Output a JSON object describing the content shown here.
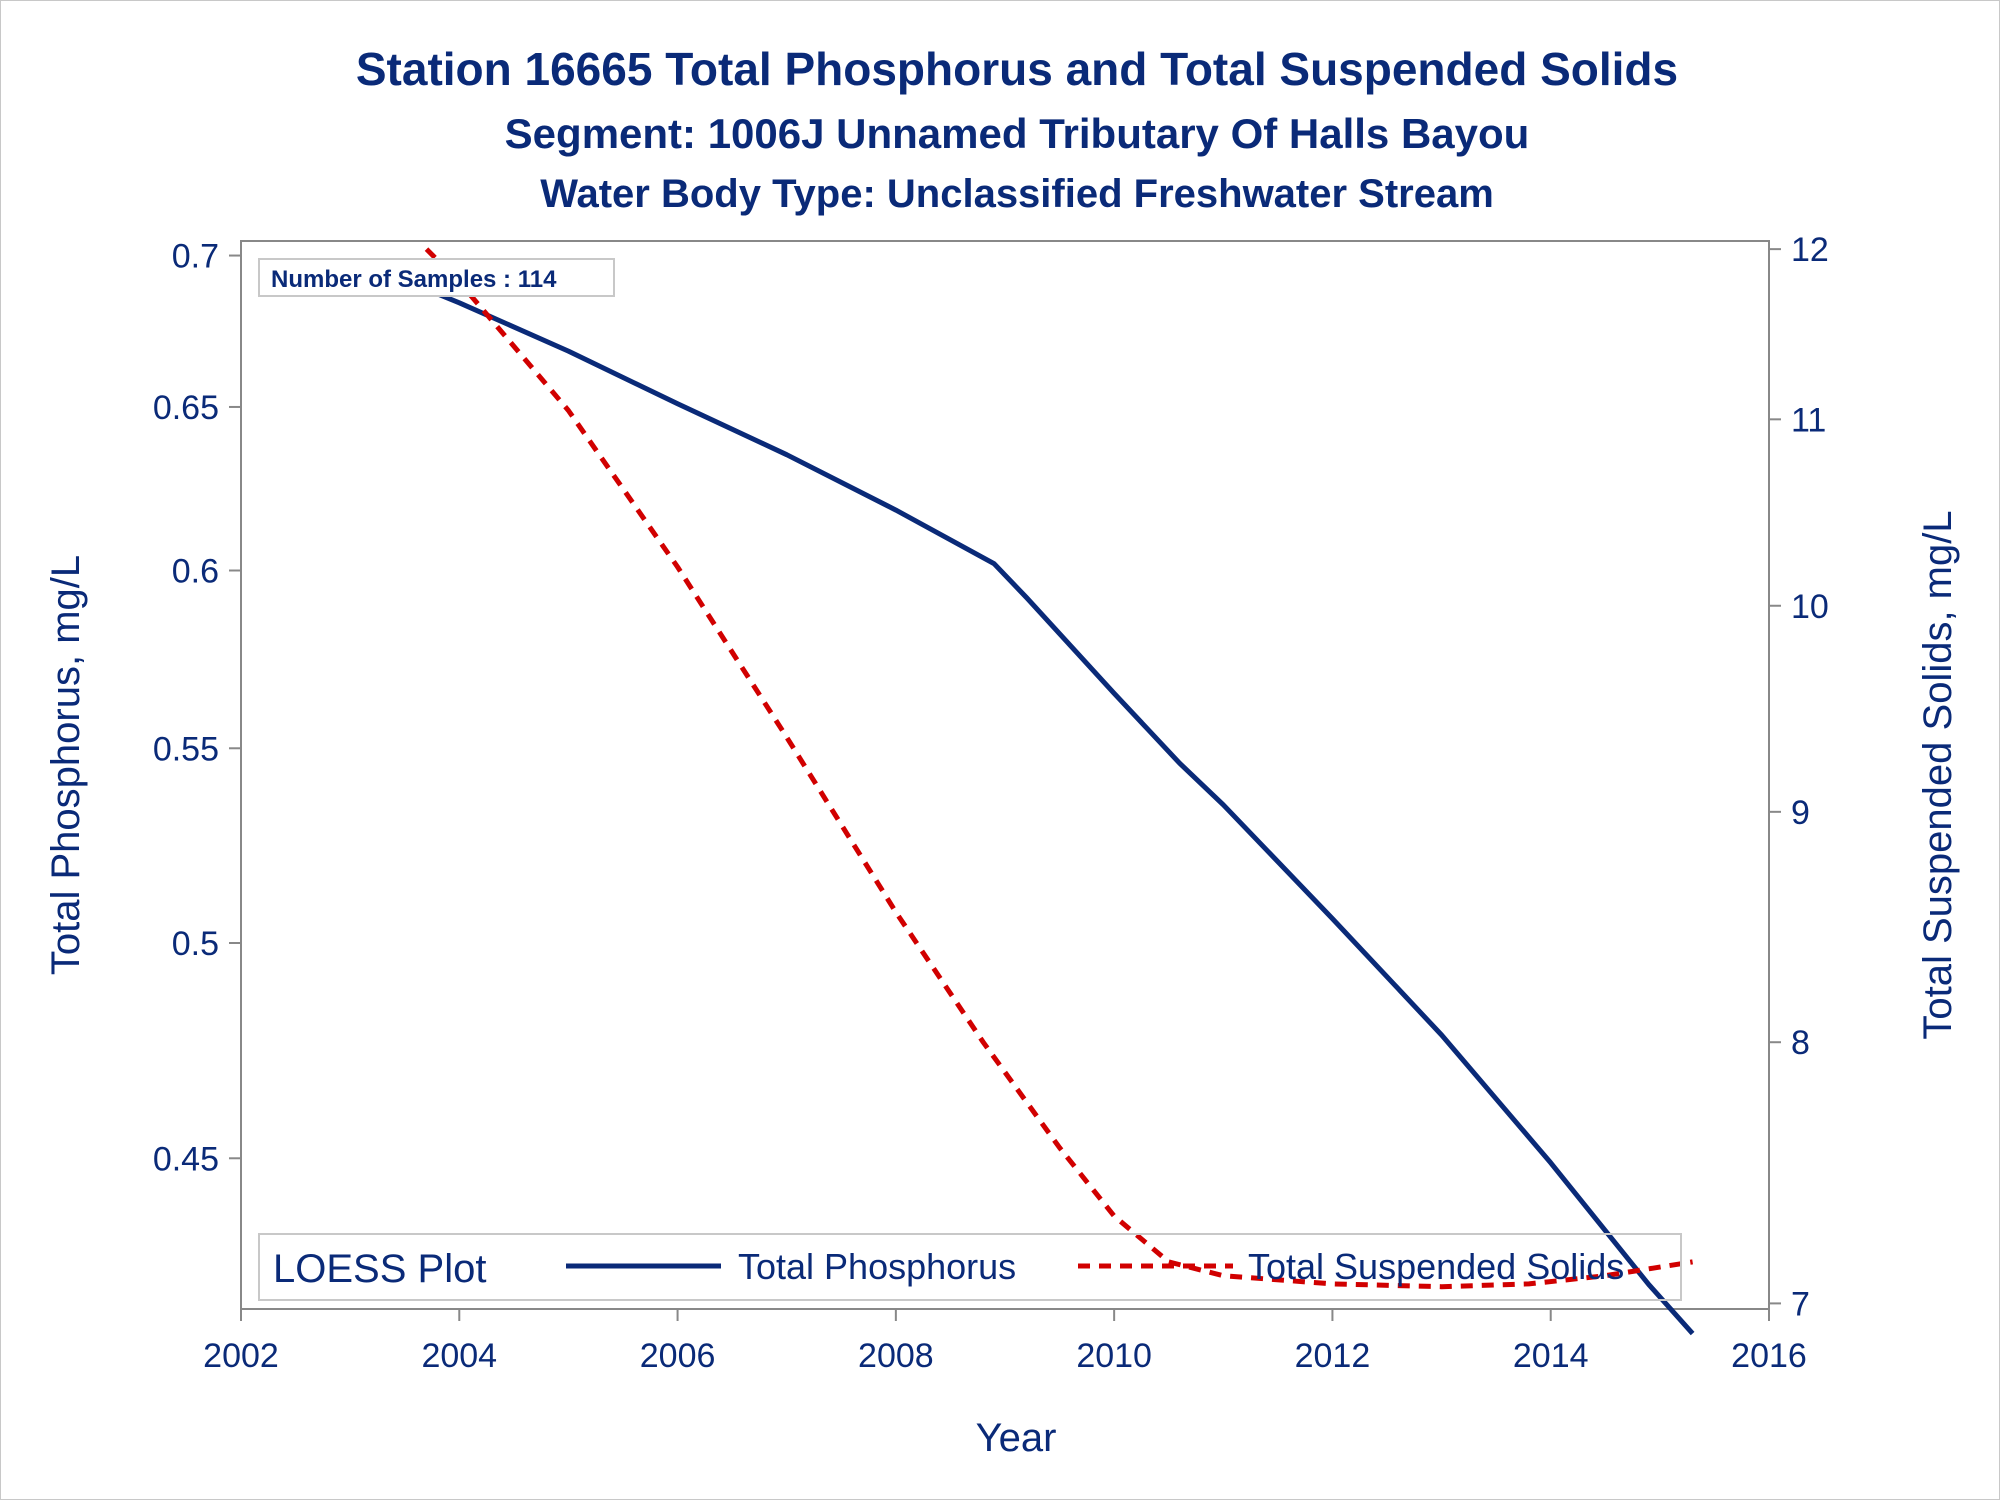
{
  "chart_data": {
    "type": "line",
    "title": "Station 16665  Total Phosphorus and Total Suspended Solids",
    "subtitle1": "Segment: 1006J  Unnamed Tributary Of Halls Bayou",
    "subtitle2": "Water Body Type: Unclassified Freshwater Stream",
    "xlabel": "Year",
    "ylabel_left": "Total Phosphorus, mg/L",
    "ylabel_right": "Total Suspended Solids, mg/L",
    "xlim": [
      2002,
      2016
    ],
    "ylim_left": [
      0.418,
      0.705
    ],
    "ylim_right": [
      6.98,
      12.05
    ],
    "y_scale": "log",
    "x_ticks": [
      "2002",
      "2004",
      "2006",
      "2008",
      "2010",
      "2012",
      "2014",
      "2016"
    ],
    "y_ticks_left": [
      "0.45",
      "0.5",
      "0.55",
      "0.6",
      "0.65",
      "0.7"
    ],
    "y_ticks_right": [
      "7",
      "8",
      "9",
      "10",
      "11",
      "12"
    ],
    "inset_label": "Number of Samples : 114",
    "legend": {
      "title": "LOESS Plot",
      "placement": "bottom inside",
      "entries": [
        "Total Phosphorus",
        "Total Suspended Solids"
      ]
    },
    "series": [
      {
        "name": "Total Phosphorus",
        "axis": "left",
        "color": "#0a2a78",
        "style": "solid",
        "x": [
          2003.6,
          2004.0,
          2005.0,
          2006.0,
          2007.0,
          2008.0,
          2008.9,
          2009.2,
          2010.0,
          2010.6,
          2011.0,
          2012.0,
          2013.0,
          2014.0,
          2014.9,
          2015.3
        ],
        "y": [
          0.69,
          0.684,
          0.668,
          0.651,
          0.635,
          0.618,
          0.602,
          0.592,
          0.565,
          0.546,
          0.535,
          0.506,
          0.478,
          0.449,
          0.423,
          0.413
        ]
      },
      {
        "name": "Total Suspended Solids",
        "axis": "right",
        "color": "#d10000",
        "style": "dashed",
        "x": [
          2003.7,
          2004.0,
          2005.0,
          2006.0,
          2007.0,
          2008.0,
          2008.8,
          2009.5,
          2010.0,
          2010.5,
          2011.0,
          2012.0,
          2013.0,
          2013.8,
          2014.5,
          2015.3
        ],
        "y": [
          12.0,
          11.8,
          11.05,
          10.2,
          9.35,
          8.55,
          8.0,
          7.58,
          7.32,
          7.15,
          7.1,
          7.07,
          7.06,
          7.07,
          7.1,
          7.15
        ]
      }
    ]
  },
  "colors": {
    "text": "#0a2a78",
    "tp_line": "#0a2a78",
    "tss_line": "#d10000",
    "axis": "#888888"
  }
}
